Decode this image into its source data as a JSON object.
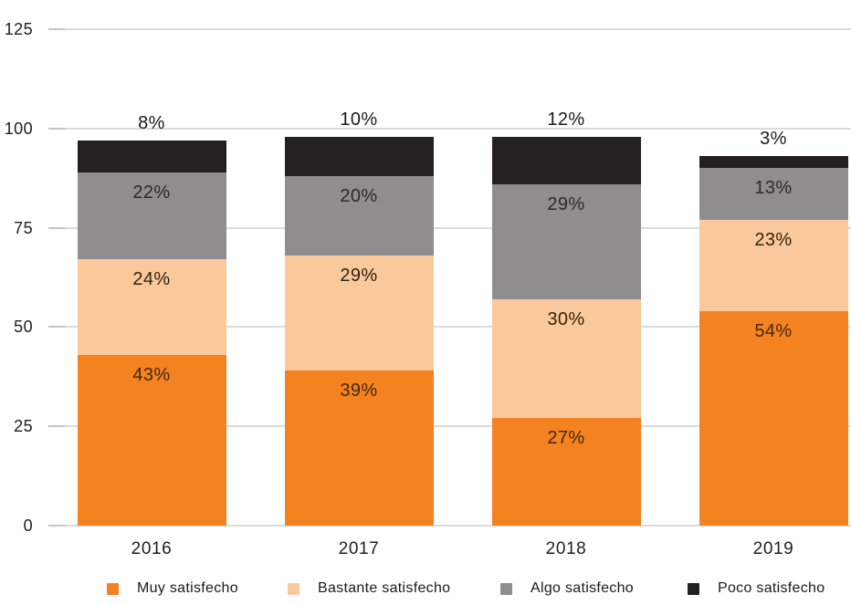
{
  "chart_data": {
    "type": "bar",
    "stacked": true,
    "title": "",
    "categories": [
      "2016",
      "2017",
      "2018",
      "2019"
    ],
    "series": [
      {
        "name": "Muy satisfecho",
        "color": "#F58220",
        "label_color": "#45270D",
        "values": [
          43,
          39,
          27,
          54
        ],
        "labels_inside": true
      },
      {
        "name": "Bastante satisfecho",
        "color": "#FAC99B",
        "label_color": "#33220E",
        "values": [
          24,
          29,
          30,
          23
        ],
        "labels_inside": true
      },
      {
        "name": "Algo satisfecho",
        "color": "#8F8D8E",
        "label_color": "#2B292A",
        "values": [
          22,
          20,
          29,
          13
        ],
        "labels_inside": true
      },
      {
        "name": "Poco satisfecho",
        "color": "#241F20",
        "label_color": "#1A1A1A",
        "values": [
          8,
          10,
          12,
          3
        ],
        "labels_inside": false,
        "labels_above_bar": true
      }
    ],
    "value_suffix": "%",
    "y_ticks": [
      0,
      25,
      50,
      75,
      100,
      125
    ],
    "ylim": [
      0,
      125
    ],
    "grid": true,
    "legend_position": "bottom",
    "xlabel": "",
    "ylabel": "",
    "colors": {
      "background": "#FFFFFF",
      "gridline": "#DBDBDB",
      "tickmark": "#C5C5C5",
      "axis_text": "#1E1E1E"
    }
  }
}
